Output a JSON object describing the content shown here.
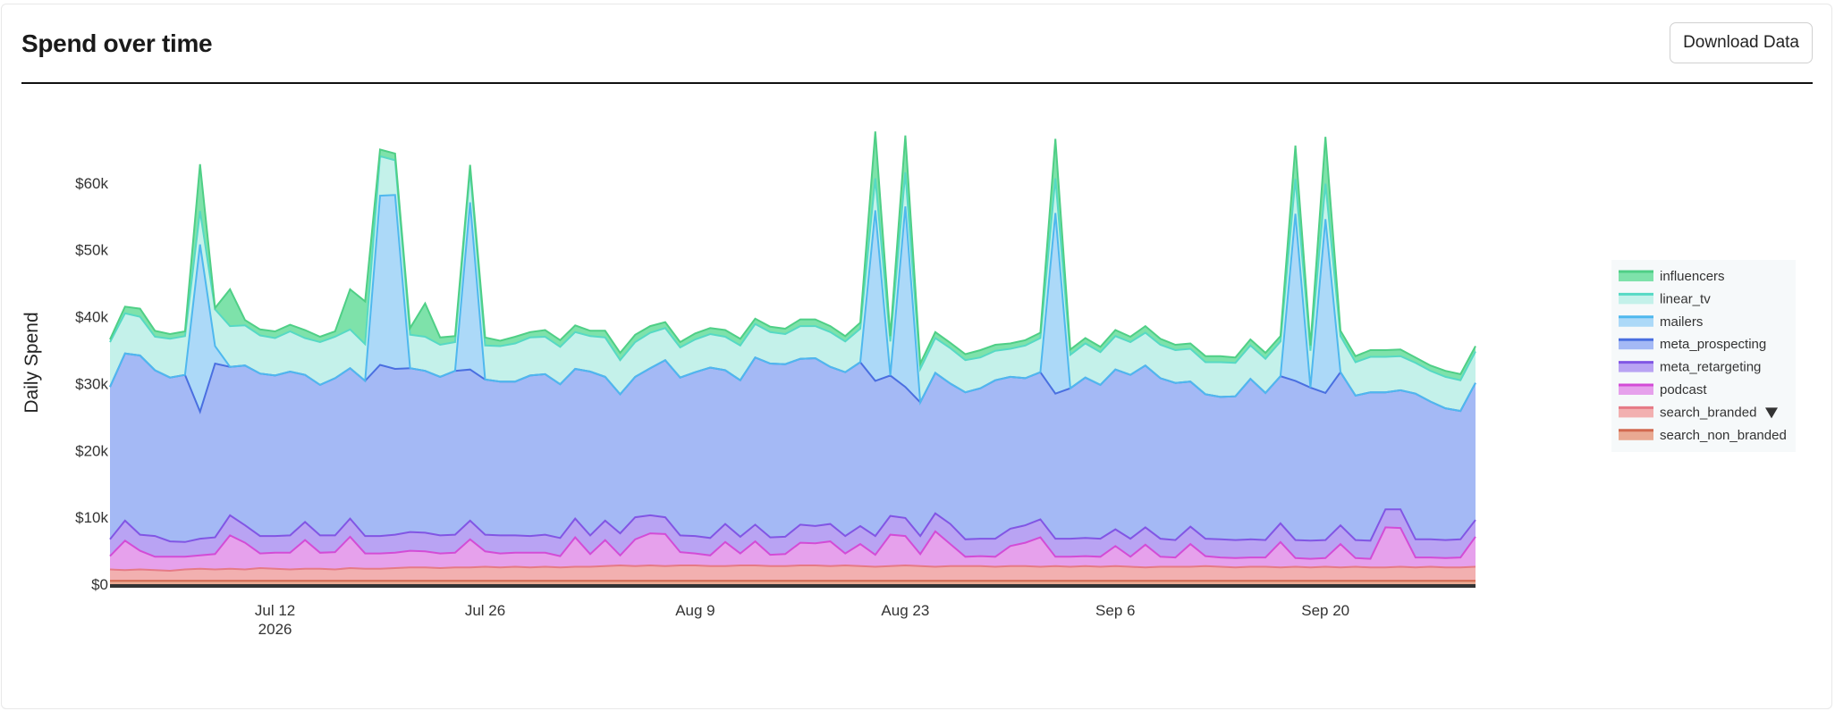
{
  "header": {
    "title": "Spend over time",
    "download_label": "Download Data"
  },
  "chart_data": {
    "type": "area",
    "stacked": true,
    "ylabel": "Daily Spend",
    "xlabel": "",
    "ylim": [
      0,
      70000
    ],
    "y_ticks": [
      0,
      10000,
      20000,
      30000,
      40000,
      50000,
      60000
    ],
    "y_tick_labels": [
      "$0",
      "$10k",
      "$20k",
      "$30k",
      "$40k",
      "$50k",
      "$60k"
    ],
    "x_start": "2026-07-01",
    "x_ticks": [
      {
        "date": "2026-07-12",
        "label": "Jul 12",
        "sub": "2026"
      },
      {
        "date": "2026-07-26",
        "label": "Jul 26",
        "sub": ""
      },
      {
        "date": "2026-08-09",
        "label": "Aug 9",
        "sub": ""
      },
      {
        "date": "2026-08-23",
        "label": "Aug 23",
        "sub": ""
      },
      {
        "date": "2026-09-06",
        "label": "Sep 6",
        "sub": ""
      },
      {
        "date": "2026-09-20",
        "label": "Sep 20",
        "sub": ""
      }
    ],
    "legend_position": "right",
    "series": [
      {
        "name": "search_non_branded",
        "stroke": "#d2694f",
        "fill": "#e9a992",
        "values": [
          500,
          500,
          500,
          500,
          500,
          500,
          500,
          500,
          500,
          500,
          500,
          500,
          500,
          500,
          500,
          500,
          500,
          500,
          500,
          500,
          500,
          500,
          500,
          500,
          500,
          500,
          500,
          500,
          500,
          500,
          500,
          500,
          500,
          500,
          500,
          500,
          500,
          500,
          500,
          500,
          500,
          500,
          500,
          500,
          500,
          500,
          500,
          500,
          500,
          500,
          500,
          500,
          500,
          500,
          500,
          500,
          500,
          500,
          500,
          500,
          500,
          500,
          500,
          500,
          500,
          500,
          500,
          500,
          500,
          500,
          500,
          500,
          500,
          500,
          500,
          500,
          500,
          500,
          500,
          500,
          500,
          500,
          500,
          500,
          500,
          500,
          500,
          500,
          500,
          500,
          500,
          500
        ]
      },
      {
        "name": "search_branded",
        "stroke": "#e67a86",
        "fill": "#f2b0b0",
        "values": [
          1700,
          1600,
          1700,
          1600,
          1500,
          1700,
          1800,
          1700,
          1800,
          1700,
          1900,
          1800,
          1700,
          1800,
          1800,
          1700,
          1900,
          1800,
          1800,
          1900,
          2000,
          2000,
          1900,
          2000,
          2000,
          2100,
          2000,
          2100,
          2000,
          2100,
          2000,
          2100,
          2100,
          2200,
          2300,
          2200,
          2300,
          2200,
          2300,
          2300,
          2200,
          2200,
          2300,
          2300,
          2200,
          2200,
          2300,
          2300,
          2200,
          2300,
          2200,
          2100,
          2200,
          2300,
          2200,
          2100,
          2200,
          2200,
          2200,
          2100,
          2200,
          2200,
          2100,
          2200,
          2100,
          2200,
          2100,
          2200,
          2100,
          2000,
          2100,
          2100,
          2100,
          2200,
          2100,
          2000,
          2100,
          2100,
          2000,
          2100,
          2000,
          2100,
          2000,
          2100,
          2000,
          2000,
          2100,
          2000,
          2100,
          2000,
          2000,
          2100
        ]
      },
      {
        "name": "podcast",
        "stroke": "#d34cd6",
        "fill": "#e6a1ec",
        "values": [
          2000,
          4400,
          2800,
          2000,
          2100,
          1900,
          2000,
          2300,
          5000,
          4000,
          2200,
          2400,
          2500,
          4300,
          2400,
          2600,
          4700,
          2300,
          2300,
          2300,
          2500,
          2400,
          2200,
          2200,
          4200,
          2300,
          2100,
          2100,
          2200,
          2100,
          1700,
          4400,
          1900,
          3900,
          1500,
          4000,
          4800,
          4800,
          2000,
          1800,
          1600,
          3600,
          1800,
          3600,
          1700,
          1800,
          3400,
          3300,
          3700,
          1800,
          3300,
          1800,
          4700,
          4400,
          1800,
          5300,
          3300,
          1400,
          1500,
          1500,
          3000,
          3500,
          4400,
          1400,
          1500,
          1500,
          1500,
          3000,
          1500,
          3400,
          1500,
          1400,
          3400,
          1500,
          1400,
          1400,
          1400,
          1400,
          3800,
          1300,
          1300,
          1300,
          3500,
          1300,
          1300,
          6000,
          5800,
          1500,
          1400,
          1400,
          1500,
          4500
        ]
      },
      {
        "name": "meta_retargeting",
        "stroke": "#8156e4",
        "fill": "#b9a3f3",
        "values": [
          2500,
          3000,
          2400,
          3100,
          2300,
          2200,
          2500,
          2500,
          3000,
          2600,
          2600,
          2500,
          2600,
          2700,
          2600,
          2500,
          2700,
          2600,
          2600,
          2700,
          2800,
          2800,
          2700,
          2700,
          2800,
          2500,
          2700,
          2600,
          2500,
          2700,
          2700,
          2800,
          2800,
          2900,
          3300,
          3300,
          2700,
          2500,
          2500,
          2600,
          2600,
          2700,
          2500,
          2500,
          2600,
          2600,
          2700,
          2600,
          2600,
          2600,
          2700,
          2800,
          2800,
          2700,
          2700,
          2700,
          3000,
          2600,
          2600,
          2700,
          2600,
          2600,
          2700,
          2700,
          2700,
          2700,
          2700,
          2500,
          2700,
          2600,
          2700,
          2600,
          2600,
          2600,
          2700,
          2700,
          2700,
          2600,
          2800,
          2700,
          2700,
          2700,
          2800,
          2700,
          2700,
          2700,
          2800,
          2700,
          2700,
          2700,
          2700,
          2500
        ]
      },
      {
        "name": "meta_prospecting",
        "stroke": "#4a6fe0",
        "fill": "#a4b9f5",
        "values": [
          22800,
          25000,
          26800,
          24800,
          24500,
          25000,
          19000,
          26000,
          22200,
          23900,
          24300,
          24000,
          24500,
          22000,
          22500,
          23500,
          22500,
          23200,
          25600,
          24800,
          24500,
          24200,
          23700,
          24500,
          22600,
          23200,
          23000,
          23000,
          24000,
          24000,
          23000,
          22400,
          24500,
          21500,
          20800,
          21000,
          22000,
          23500,
          23600,
          24500,
          25500,
          23000,
          23400,
          25000,
          26000,
          25800,
          24800,
          25100,
          23500,
          24500,
          24500,
          23200,
          21000,
          19600,
          20000,
          21000,
          21000,
          22000,
          22500,
          23700,
          22700,
          22000,
          22000,
          21700,
          22500,
          24000,
          23000,
          23900,
          24500,
          24200,
          24000,
          23500,
          21700,
          21600,
          21300,
          21500,
          24000,
          22000,
          22000,
          23800,
          22900,
          22000,
          22900,
          21600,
          22200,
          17500,
          17800,
          21800,
          20600,
          19700,
          19200,
          20500
        ]
      },
      {
        "name": "mailers",
        "stroke": "#4fb8ee",
        "fill": "#acd9f8",
        "values": [
          0,
          0,
          0,
          0,
          0,
          0,
          25000,
          2600,
          0,
          0,
          0,
          0,
          0,
          0,
          0,
          0,
          0,
          0,
          25300,
          26000,
          0,
          0,
          0,
          0,
          25000,
          0,
          0,
          0,
          0,
          0,
          0,
          0,
          0,
          0,
          0,
          0,
          0,
          0,
          0,
          0,
          0,
          0,
          0,
          0,
          0,
          0,
          0,
          0,
          0,
          0,
          0,
          25500,
          0,
          27000,
          0,
          0,
          0,
          0,
          0,
          0,
          0,
          0,
          0,
          27000,
          0,
          0,
          0,
          0,
          0,
          0,
          0,
          0,
          0,
          0,
          0,
          0,
          0,
          0,
          0,
          25000,
          0,
          26000,
          0,
          0,
          0,
          0,
          0,
          0,
          0,
          0,
          0,
          0
        ]
      },
      {
        "name": "linear_tv",
        "stroke": "#56d9c4",
        "fill": "#c4f1ea",
        "values": [
          6700,
          6000,
          5800,
          5000,
          5800,
          5800,
          5000,
          5500,
          6100,
          6000,
          5700,
          5600,
          6000,
          5500,
          6400,
          6200,
          5800,
          5500,
          5900,
          5200,
          5000,
          5100,
          4800,
          4300,
          4800,
          5100,
          5300,
          5700,
          5700,
          5600,
          5600,
          5500,
          5300,
          5900,
          5100,
          5200,
          5300,
          4800,
          4500,
          4900,
          5000,
          5000,
          5200,
          5000,
          4700,
          4500,
          4900,
          4800,
          5200,
          4600,
          5000,
          4800,
          5100,
          5100,
          5000,
          5200,
          5300,
          4800,
          4600,
          4400,
          4200,
          4900,
          5100,
          5200,
          5000,
          5100,
          4900,
          5000,
          4900,
          4900,
          5000,
          4900,
          4900,
          4800,
          5200,
          5000,
          5000,
          5100,
          5200,
          5200,
          5500,
          5300,
          5400,
          5000,
          5300,
          5300,
          5100,
          4600,
          4600,
          4700,
          4600,
          4700
        ]
      },
      {
        "name": "influencers",
        "stroke": "#4fcf86",
        "fill": "#7ee2aa",
        "values": [
          400,
          1000,
          1200,
          900,
          700,
          700,
          7000,
          200,
          5500,
          800,
          900,
          1000,
          1000,
          1200,
          800,
          800,
          6000,
          6400,
          1000,
          1000,
          1000,
          5000,
          1100,
          900,
          800,
          1200,
          800,
          1000,
          800,
          1000,
          1000,
          1000,
          800,
          1000,
          1100,
          1100,
          1000,
          900,
          800,
          900,
          900,
          1000,
          1000,
          800,
          800,
          800,
          1000,
          1000,
          900,
          800,
          900,
          7000,
          800,
          5500,
          800,
          900,
          800,
          900,
          1100,
          900,
          800,
          800,
          800,
          5900,
          800,
          800,
          800,
          900,
          800,
          1000,
          900,
          800,
          800,
          900,
          900,
          800,
          900,
          900,
          800,
          5000,
          800,
          7000,
          800,
          900,
          1000,
          1000,
          1000,
          800,
          800,
          900,
          900,
          800
        ]
      }
    ]
  }
}
